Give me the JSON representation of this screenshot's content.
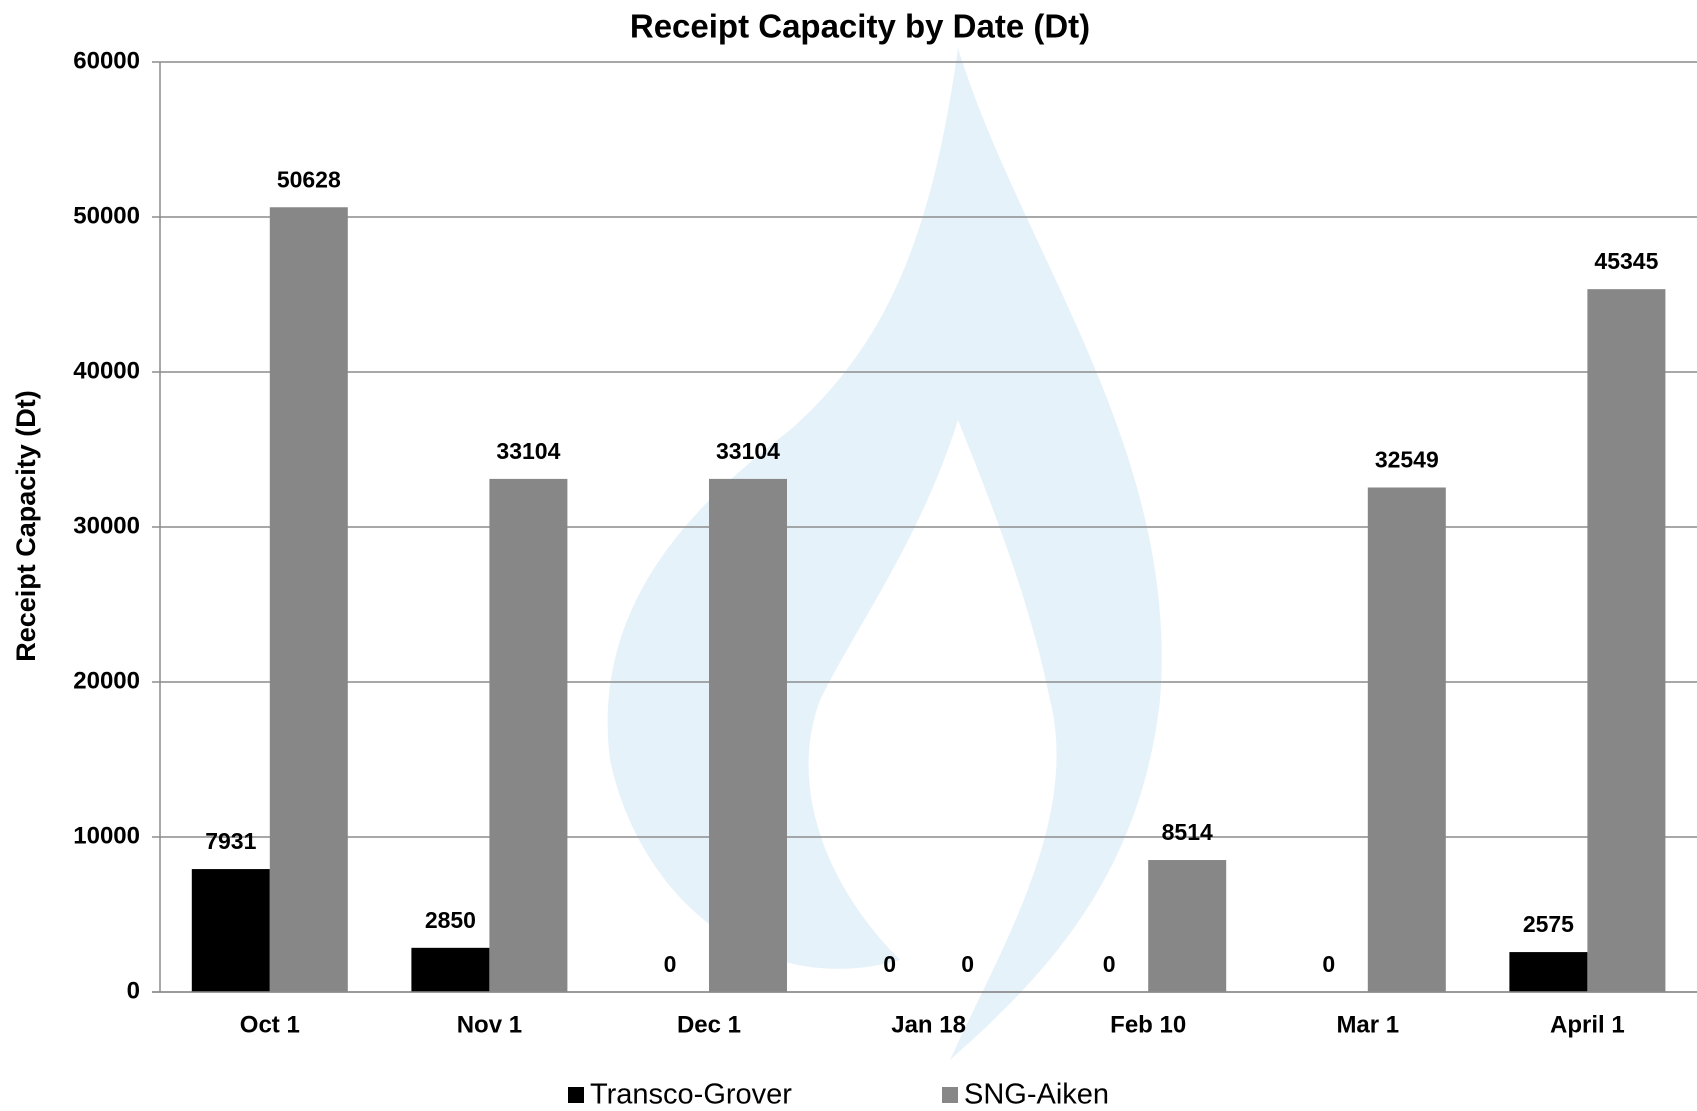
{
  "chart_data": {
    "type": "bar",
    "title": "Receipt Capacity by Date (Dt)",
    "y_label": "Receipt Capacity (Dt)",
    "categories": [
      "Oct 1",
      "Nov 1",
      "Dec 1",
      "Jan 18",
      "Feb 10",
      "Mar 1",
      "April 1"
    ],
    "series": [
      {
        "name": "Transco-Grover",
        "color": "#000000",
        "values": [
          7931,
          2850,
          0,
          0,
          0,
          0,
          2575
        ]
      },
      {
        "name": "SNG-Aiken",
        "color": "#878787",
        "values": [
          50628,
          33104,
          33104,
          0,
          8514,
          32549,
          45345
        ]
      }
    ],
    "ylim": [
      0,
      60000
    ],
    "yticks": [
      0,
      10000,
      20000,
      30000,
      40000,
      50000,
      60000
    ],
    "grid": true
  }
}
